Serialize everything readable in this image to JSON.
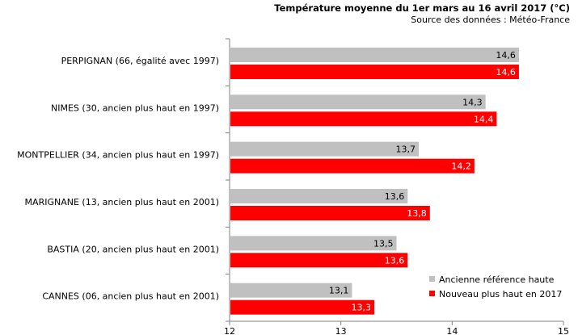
{
  "chart_data": {
    "type": "bar",
    "orientation": "horizontal",
    "title": "Température moyenne du 1er mars au 16 avril 2017 (°C)",
    "subtitle": "Source des données : Météo-France",
    "categories": [
      "PERPIGNAN (66, égalité avec 1997)",
      "NIMES (30, ancien plus haut en 1997)",
      "MONTPELLIER (34, ancien plus haut en 1997)",
      "MARIGNANE (13, ancien plus haut en 2001)",
      "BASTIA (20, ancien plus haut en 2001)",
      "CANNES (06, ancien plus haut en 2001)"
    ],
    "series": [
      {
        "name": "Ancienne référence haute",
        "color": "#c0c0c0",
        "values": [
          14.6,
          14.3,
          13.7,
          13.6,
          13.5,
          13.1
        ],
        "labels": [
          "14,6",
          "14,3",
          "13,7",
          "13,6",
          "13,5",
          "13,1"
        ]
      },
      {
        "name": "Nouveau plus haut en 2017",
        "color": "#ff0000",
        "values": [
          14.6,
          14.4,
          14.2,
          13.8,
          13.6,
          13.3
        ],
        "labels": [
          "14,6",
          "14,4",
          "14,2",
          "13,8",
          "13,6",
          "13,3"
        ]
      }
    ],
    "xlim": [
      12,
      15
    ],
    "xticks": [
      12,
      13,
      14,
      15
    ],
    "xtick_labels": [
      "12",
      "13",
      "14",
      "15"
    ],
    "grid": false,
    "legend_position": "bottom-right"
  }
}
